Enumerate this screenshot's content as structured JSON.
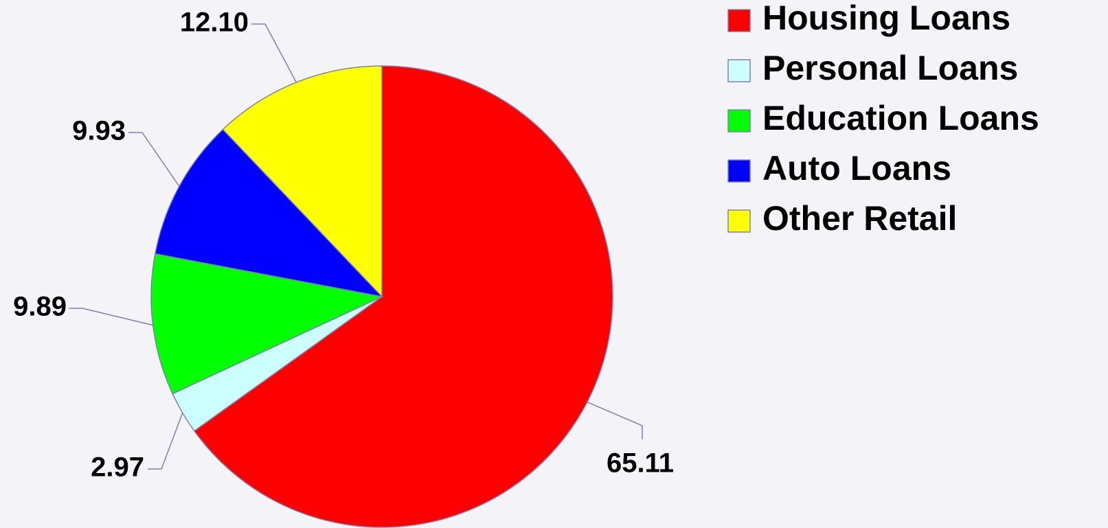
{
  "chart_data": {
    "type": "pie",
    "categories": [
      "Housing Loans",
      "Personal Loans",
      "Education Loans",
      "Auto Loans",
      "Other Retail"
    ],
    "values": [
      65.11,
      2.97,
      9.89,
      9.93,
      12.1
    ],
    "value_labels": [
      "65.11",
      "2.97",
      "9.89",
      "9.93",
      "12.10"
    ],
    "colors": [
      "#ff0000",
      "#ccffff",
      "#00ff00",
      "#0000ff",
      "#ffff00"
    ],
    "legend": "right"
  }
}
